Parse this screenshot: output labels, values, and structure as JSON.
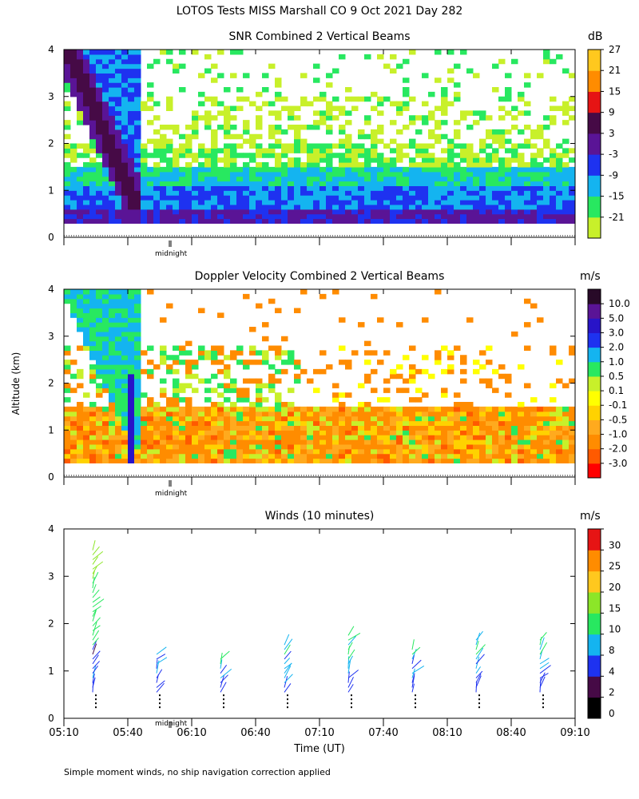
{
  "page": {
    "title": "LOTOS Tests MISS Marshall CO   9 Oct 2021 Day 282",
    "ylabel": "Altitude (km)",
    "footnote": "Simple moment winds, no ship navigation correction applied",
    "midnight": "midnight"
  },
  "chart_data": [
    {
      "type": "heatmap",
      "title": "SNR Combined 2 Vertical Beams",
      "ylabel": "Altitude (km)",
      "ylim": [
        0,
        4
      ],
      "yticks": [
        "0",
        "1",
        "2",
        "3",
        "4"
      ],
      "xlim": [
        "05:10",
        "09:10"
      ],
      "colorbar": {
        "unit": "dB",
        "colors": [
          "#c8f02a",
          "#28e860",
          "#14b4f0",
          "#1e32f0",
          "#5a1496",
          "#460a46",
          "#e61414",
          "#ff8c00",
          "#ffc81e"
        ],
        "labels": [
          "-21",
          "-15",
          "-9",
          "-3",
          "3",
          "9",
          "15",
          "21",
          "27"
        ]
      }
    },
    {
      "type": "heatmap",
      "title": "Doppler Velocity Combined 2 Vertical Beams",
      "ylabel": "Altitude (km)",
      "ylim": [
        0,
        4
      ],
      "yticks": [
        "0",
        "1",
        "2",
        "3",
        "4"
      ],
      "xlim": [
        "05:10",
        "09:10"
      ],
      "colorbar": {
        "unit": "m/s",
        "colors": [
          "#ff0000",
          "#ff5a00",
          "#ff8c00",
          "#ffaa1e",
          "#ffd200",
          "#ffff00",
          "#c8f02a",
          "#28e860",
          "#14b4f0",
          "#1e32f0",
          "#2814c8",
          "#5a1496",
          "#280a28"
        ],
        "labels": [
          "-3.0",
          "-2.0",
          "-1.0",
          "-0.5",
          "-0.1",
          "0.1",
          "0.5",
          "1.0",
          "2.0",
          "3.0",
          "5.0",
          "10.0"
        ]
      }
    },
    {
      "type": "wind-barbs",
      "title": "Winds (10 minutes)",
      "ylabel": "Altitude (km)",
      "xlabel": "Time (UT)",
      "ylim": [
        0,
        4
      ],
      "yticks": [
        "0",
        "1",
        "2",
        "3",
        "4"
      ],
      "xticks": [
        "05:10",
        "05:40",
        "06:10",
        "06:40",
        "07:10",
        "07:40",
        "08:10",
        "08:40",
        "09:10"
      ],
      "profile_times": [
        "05:25",
        "05:55",
        "06:25",
        "06:55",
        "07:25",
        "07:55",
        "08:25",
        "08:55"
      ],
      "colorbar": {
        "unit": "m/s",
        "colors": [
          "#000000",
          "#460a46",
          "#1e32f0",
          "#14b4f0",
          "#28e860",
          "#8ce628",
          "#ffc81e",
          "#ff8c00",
          "#e61414"
        ],
        "labels": [
          "0",
          "2",
          "4",
          "8",
          "10",
          "15",
          "20",
          "25",
          "30"
        ]
      }
    }
  ]
}
